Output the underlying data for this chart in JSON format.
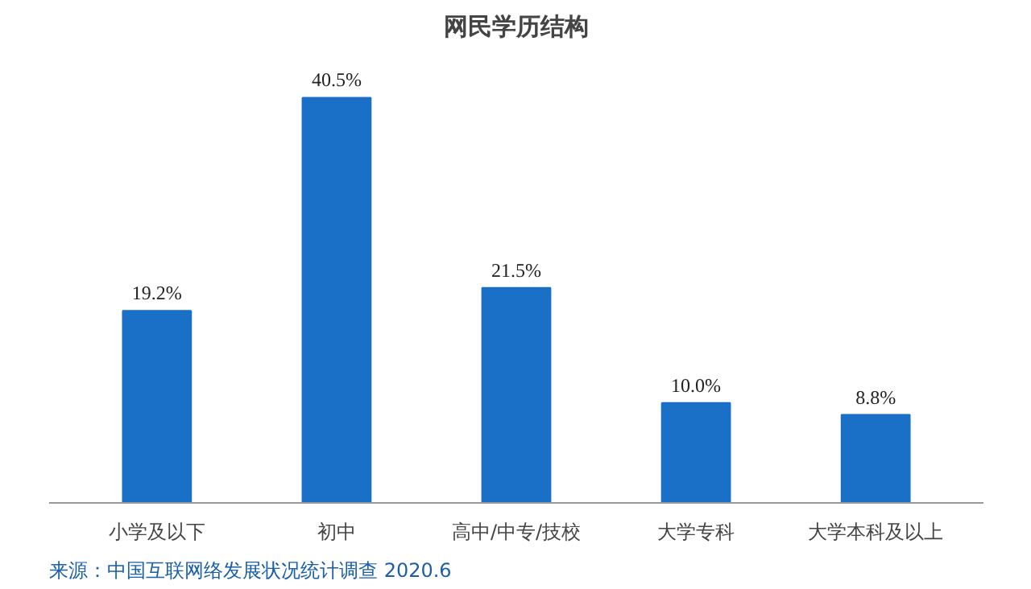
{
  "chart_data": {
    "type": "bar",
    "title": "网民学历结构",
    "categories": [
      "小学及以下",
      "初中",
      "高中/中专/技校",
      "大学专科",
      "大学本科及以上"
    ],
    "values": [
      19.2,
      40.5,
      21.5,
      10.0,
      8.8
    ],
    "value_labels": [
      "19.2%",
      "40.5%",
      "21.5%",
      "10.0%",
      "8.8%"
    ],
    "color": "#1a6fc6",
    "annotations": [
      "来源：中国互联网络发展状况统计调查 2020.6"
    ]
  }
}
